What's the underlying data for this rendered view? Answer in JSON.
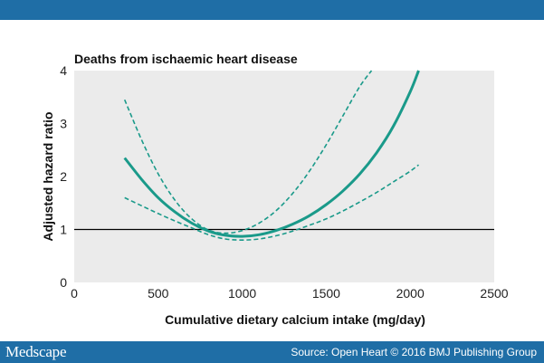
{
  "colors": {
    "accent": "#1a9a8a",
    "header_bar": "#1f6ea6",
    "plot_background": "#ebebeb",
    "reference_line": "#000000"
  },
  "footer": {
    "brand": "Medscape",
    "source": "Source: Open Heart © 2016 BMJ Publishing Group"
  },
  "chart_data": {
    "type": "line",
    "title": "Deaths from ischaemic heart disease",
    "xlabel": "Cumulative dietary calcium intake (mg/day)",
    "ylabel": "Adjusted hazard ratio",
    "xlim": [
      0,
      2500
    ],
    "ylim": [
      0,
      4
    ],
    "xticks": [
      0,
      500,
      1000,
      1500,
      2000,
      2500
    ],
    "yticks": [
      0,
      1,
      2,
      3,
      4
    ],
    "grid": false,
    "reference_line_y": 1,
    "series": [
      {
        "style": "solid",
        "x": [
          300,
          400,
          500,
          600,
          700,
          800,
          900,
          1000,
          1100,
          1200,
          1300,
          1400,
          1500,
          1600,
          1700,
          1800,
          1900,
          2000,
          2050
        ],
        "y": [
          2.35,
          1.95,
          1.6,
          1.33,
          1.12,
          0.97,
          0.89,
          0.87,
          0.9,
          0.98,
          1.1,
          1.26,
          1.47,
          1.73,
          2.05,
          2.45,
          2.95,
          3.6,
          4.0
        ]
      },
      {
        "style": "dashed",
        "x": [
          300,
          400,
          500,
          600,
          700,
          800,
          900,
          1000,
          1100,
          1200,
          1300,
          1400,
          1500,
          1600,
          1700,
          1770
        ],
        "y": [
          3.45,
          2.7,
          2.05,
          1.55,
          1.2,
          0.99,
          0.93,
          0.98,
          1.12,
          1.35,
          1.68,
          2.1,
          2.6,
          3.15,
          3.7,
          4.0
        ]
      },
      {
        "style": "dashed",
        "x": [
          300,
          400,
          500,
          600,
          700,
          800,
          900,
          1000,
          1100,
          1200,
          1300,
          1400,
          1500,
          1600,
          1700,
          1800,
          1900,
          2000,
          2050
        ],
        "y": [
          1.6,
          1.45,
          1.3,
          1.16,
          1.03,
          0.9,
          0.82,
          0.8,
          0.82,
          0.88,
          0.97,
          1.08,
          1.2,
          1.35,
          1.52,
          1.7,
          1.9,
          2.1,
          2.22
        ]
      }
    ]
  }
}
